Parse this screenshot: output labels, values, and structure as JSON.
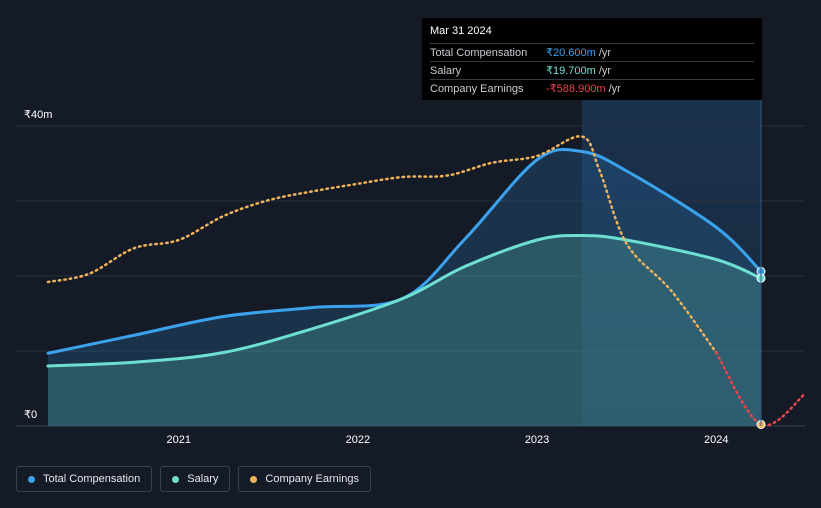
{
  "tooltip": {
    "date": "Mar 31 2024",
    "rows": [
      {
        "label": "Total Compensation",
        "value": "₹20.600m",
        "unit": "/yr"
      },
      {
        "label": "Salary",
        "value": "₹19.700m",
        "unit": "/yr"
      },
      {
        "label": "Company Earnings",
        "value": "-₹588.900m",
        "unit": "/yr"
      }
    ]
  },
  "legend": [
    {
      "label": "Total Compensation",
      "color": "#3ba2ee"
    },
    {
      "label": "Salary",
      "color": "#6ee0d2"
    },
    {
      "label": "Company Earnings",
      "color": "#f0b25a"
    }
  ],
  "chart_data": {
    "type": "area",
    "title": "",
    "xlabel": "",
    "ylabel": "",
    "y_tick_labels": [
      "₹0",
      "₹40m"
    ],
    "y_ticks": [
      0,
      40
    ],
    "ylim": [
      0,
      40
    ],
    "xlim": [
      2020.27,
      2024.5
    ],
    "x_ticks": [
      2021,
      2022,
      2023,
      2024
    ],
    "x_tick_labels": [
      "2021",
      "2022",
      "2023",
      "2024"
    ],
    "highlight_from": 2023.25,
    "highlight_to": 2024.25,
    "series": [
      {
        "name": "Total Compensation",
        "color": "#3ba2ee",
        "style": "area",
        "points": [
          [
            2020.27,
            9.7
          ],
          [
            2020.75,
            12.1
          ],
          [
            2021.25,
            14.6
          ],
          [
            2021.75,
            15.8
          ],
          [
            2022.25,
            17.0
          ],
          [
            2022.6,
            25.0
          ],
          [
            2023.0,
            35.5
          ],
          [
            2023.25,
            36.6
          ],
          [
            2023.5,
            34.0
          ],
          [
            2024.0,
            26.5
          ],
          [
            2024.25,
            20.6
          ]
        ]
      },
      {
        "name": "Salary",
        "color": "#6ee0d2",
        "style": "area",
        "points": [
          [
            2020.27,
            8.0
          ],
          [
            2020.75,
            8.5
          ],
          [
            2021.25,
            9.8
          ],
          [
            2021.75,
            13.0
          ],
          [
            2022.25,
            17.0
          ],
          [
            2022.6,
            21.3
          ],
          [
            2023.0,
            24.8
          ],
          [
            2023.25,
            25.4
          ],
          [
            2023.5,
            24.8
          ],
          [
            2024.0,
            22.2
          ],
          [
            2024.25,
            19.7
          ]
        ]
      },
      {
        "name": "Company Earnings",
        "color": "#f0b25a",
        "negative_color": "#e8434a",
        "style": "dotted",
        "points": [
          [
            2020.27,
            19.2
          ],
          [
            2020.5,
            20.3
          ],
          [
            2020.75,
            23.7
          ],
          [
            2021.0,
            24.8
          ],
          [
            2021.25,
            28.0
          ],
          [
            2021.5,
            30.1
          ],
          [
            2021.75,
            31.3
          ],
          [
            2022.0,
            32.3
          ],
          [
            2022.25,
            33.2
          ],
          [
            2022.5,
            33.4
          ],
          [
            2022.75,
            35.1
          ],
          [
            2023.0,
            36.0
          ],
          [
            2023.25,
            38.6
          ],
          [
            2023.35,
            34.0
          ],
          [
            2023.5,
            24.3
          ],
          [
            2023.75,
            18.0
          ],
          [
            2024.0,
            9.8
          ],
          [
            2024.25,
            0.2
          ],
          [
            2024.5,
            4.4
          ]
        ]
      }
    ]
  }
}
